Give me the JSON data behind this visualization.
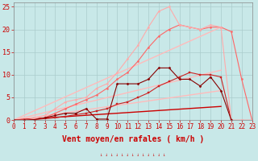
{
  "bg_color": "#c8e8e8",
  "grid_color": "#aacccc",
  "xlim": [
    0,
    23
  ],
  "ylim": [
    0,
    26
  ],
  "yticks": [
    0,
    5,
    10,
    15,
    20,
    25
  ],
  "xticks": [
    0,
    1,
    2,
    3,
    4,
    5,
    6,
    7,
    8,
    9,
    10,
    11,
    12,
    13,
    14,
    15,
    16,
    17,
    18,
    19,
    20,
    21,
    22,
    23
  ],
  "xlabel": "Vent moyen/en rafales ( km/h )",
  "xlabel_color": "#cc0000",
  "xlabel_fontsize": 7,
  "tick_fontsize": 5.5,
  "tick_color": "#cc0000",
  "lines": [
    {
      "x": [
        0,
        20
      ],
      "y": [
        0,
        20.5
      ],
      "color": "#ffbbbb",
      "lw": 1.0,
      "marker": null
    },
    {
      "x": [
        0,
        20
      ],
      "y": [
        0,
        11.0
      ],
      "color": "#ffbbbb",
      "lw": 1.0,
      "marker": null
    },
    {
      "x": [
        0,
        20
      ],
      "y": [
        0,
        6.5
      ],
      "color": "#ffbbbb",
      "lw": 1.0,
      "marker": null
    },
    {
      "x": [
        0,
        20
      ],
      "y": [
        0,
        3.0
      ],
      "color": "#cc0000",
      "lw": 1.0,
      "marker": null
    },
    {
      "x": [
        0,
        1,
        2,
        3,
        4,
        5,
        6,
        7,
        8,
        9,
        10,
        11,
        12,
        13,
        14,
        15,
        16,
        17,
        18,
        19,
        20,
        21
      ],
      "y": [
        0,
        0,
        0.1,
        0.3,
        0.5,
        0.8,
        1.2,
        1.5,
        2.0,
        2.5,
        3.5,
        4.0,
        5.0,
        6.0,
        7.5,
        8.5,
        9.5,
        10.5,
        10.0,
        10.0,
        9.5,
        0
      ],
      "color": "#cc2222",
      "lw": 0.8,
      "marker": "s",
      "ms": 1.5
    },
    {
      "x": [
        0,
        1,
        2,
        3,
        4,
        5,
        6,
        7,
        8,
        9,
        10,
        11,
        12,
        13,
        14,
        15,
        16,
        17,
        18,
        19,
        20,
        21,
        22,
        23
      ],
      "y": [
        0,
        0,
        0.2,
        0.5,
        1.5,
        2.5,
        3.5,
        4.5,
        5.5,
        7.0,
        9.0,
        10.5,
        13.0,
        16.0,
        18.5,
        20.0,
        21.0,
        20.5,
        20.0,
        20.5,
        20.5,
        19.5,
        9.0,
        0
      ],
      "color": "#ff6666",
      "lw": 0.8,
      "marker": "o",
      "ms": 1.5
    },
    {
      "x": [
        0,
        1,
        2,
        3,
        4,
        5,
        6,
        7,
        8,
        9,
        10,
        11,
        12,
        13,
        14,
        15,
        16,
        17,
        18,
        19,
        20,
        21,
        22,
        23
      ],
      "y": [
        0,
        0,
        0.3,
        1.0,
        2.5,
        4.0,
        4.5,
        5.0,
        7.0,
        8.0,
        10.5,
        13.5,
        16.5,
        20.5,
        24.0,
        25.0,
        21.0,
        20.5,
        20.0,
        21.0,
        20.5,
        0,
        0,
        0
      ],
      "color": "#ffaaaa",
      "lw": 0.8,
      "marker": "o",
      "ms": 1.5
    },
    {
      "x": [
        0,
        1,
        2,
        3,
        4,
        5,
        6,
        7,
        8,
        9,
        10,
        11,
        12,
        13,
        14,
        15,
        16,
        17,
        18,
        19,
        20,
        21
      ],
      "y": [
        0,
        0,
        0.1,
        0.5,
        1.0,
        1.5,
        1.5,
        2.5,
        0.2,
        0.2,
        8.0,
        8.0,
        8.0,
        9.0,
        11.5,
        11.5,
        9.0,
        9.0,
        7.5,
        9.5,
        6.5,
        0
      ],
      "color": "#880000",
      "lw": 0.8,
      "marker": "D",
      "ms": 1.5
    }
  ]
}
